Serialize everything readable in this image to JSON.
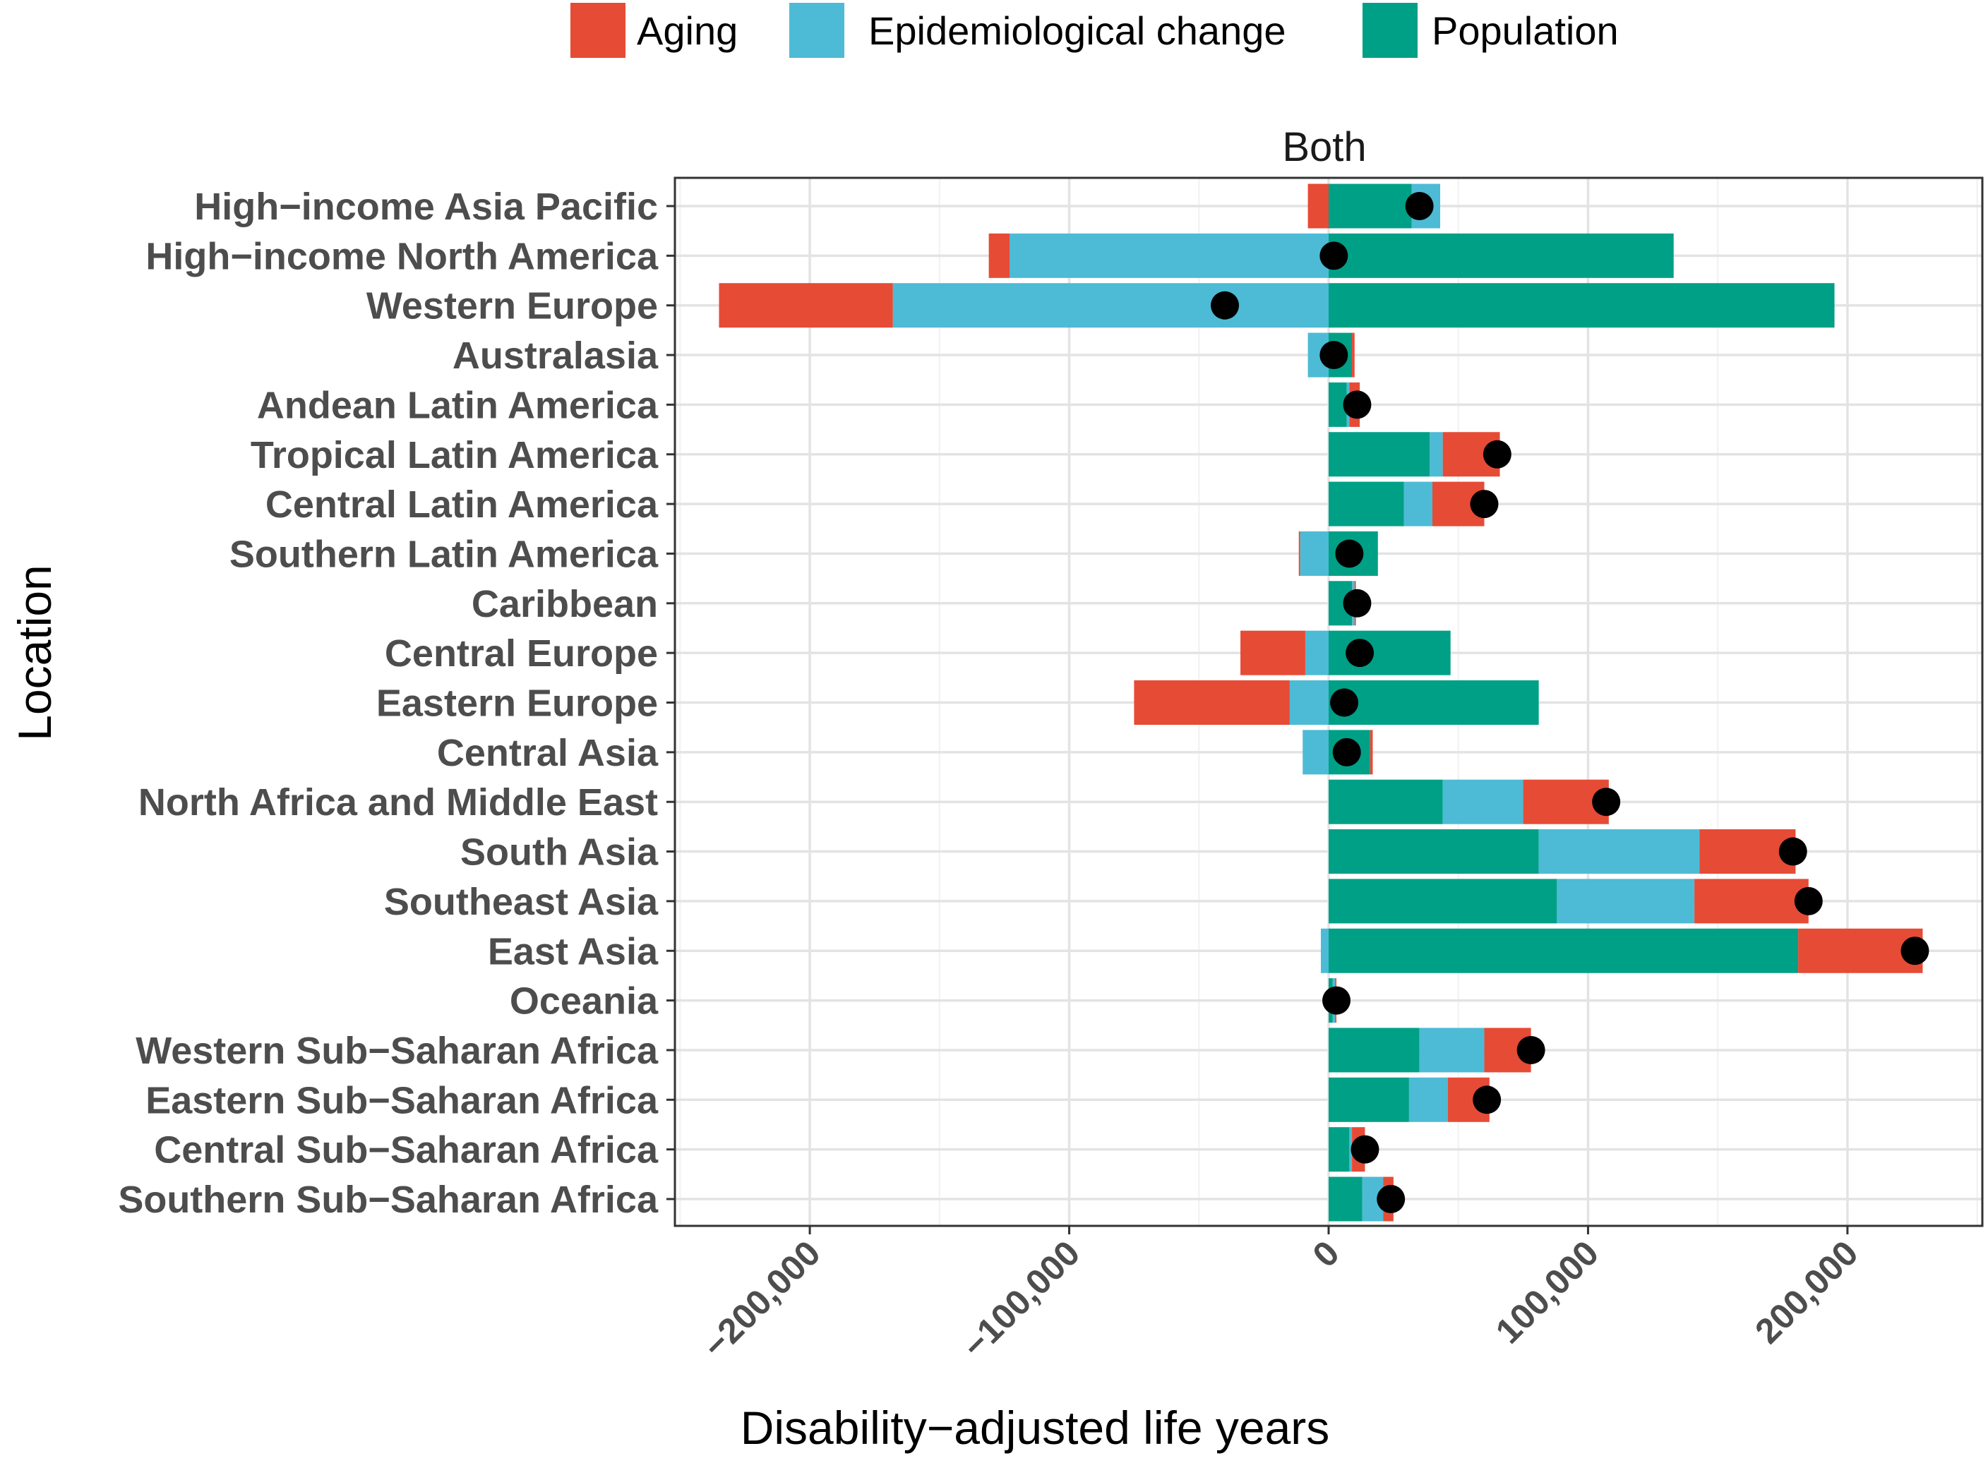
{
  "chart_data": {
    "type": "bar",
    "orientation": "horizontal",
    "stacking": "diverging",
    "facet_title": "Both",
    "xlabel": "Disability−adjusted life years",
    "ylabel": "Location",
    "xlim": [
      -252000,
      252000
    ],
    "xticks": [
      -200000,
      -100000,
      0,
      100000,
      200000
    ],
    "xtick_labels": [
      "−200,000",
      "−100,000",
      "0",
      "100,000",
      "200,000"
    ],
    "grid": true,
    "legend_position": "top",
    "categories": [
      "High−income Asia Pacific",
      "High−income North America",
      "Western Europe",
      "Australasia",
      "Andean Latin America",
      "Tropical Latin America",
      "Central Latin America",
      "Southern Latin America",
      "Caribbean",
      "Central Europe",
      "Eastern Europe",
      "Central Asia",
      "North Africa and Middle East",
      "South Asia",
      "Southeast Asia",
      "East Asia",
      "Oceania",
      "Western Sub−Saharan Africa",
      "Eastern Sub−Saharan Africa",
      "Central Sub−Saharan Africa",
      "Southern Sub−Saharan Africa"
    ],
    "series": [
      {
        "name": "Aging",
        "color": "#E64B35",
        "values": [
          -8000,
          -8000,
          -67000,
          1000,
          4000,
          22000,
          20000,
          -500,
          500,
          -25000,
          -60000,
          1000,
          33000,
          37000,
          44000,
          48000,
          500,
          18000,
          16000,
          5000,
          4000
        ]
      },
      {
        "name": "Epidemiological change",
        "color": "#4DBBD5",
        "values": [
          11000,
          -123000,
          -168000,
          -8000,
          1000,
          5000,
          11000,
          -11000,
          1000,
          -9000,
          -15000,
          -10000,
          31000,
          62000,
          53000,
          -3000,
          1000,
          25000,
          15000,
          1000,
          8000
        ]
      },
      {
        "name": "Population",
        "color": "#00A087",
        "values": [
          32000,
          133000,
          195000,
          9000,
          7000,
          39000,
          29000,
          19000,
          9000,
          47000,
          81000,
          16000,
          44000,
          81000,
          88000,
          181000,
          1500,
          35000,
          31000,
          8000,
          13000
        ]
      }
    ],
    "net_change": [
      35000,
      2000,
      -40000,
      2000,
      11000,
      65000,
      60000,
      8000,
      11000,
      12000,
      6000,
      7000,
      107000,
      179000,
      185000,
      226000,
      3000,
      78000,
      61000,
      14000,
      24000
    ]
  }
}
